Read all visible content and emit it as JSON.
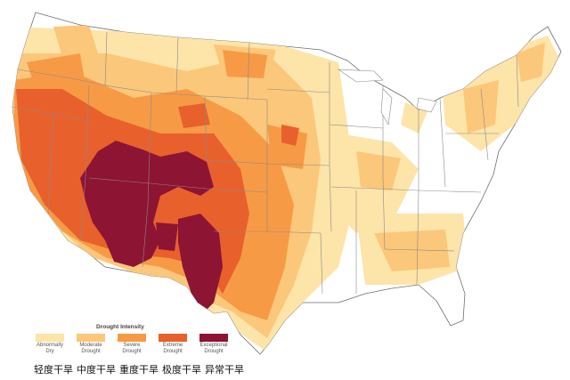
{
  "legend": {
    "title": "Drought Intensity",
    "levels": [
      {
        "en": "Abnormally\nDry",
        "cn": "轻度干旱",
        "color": "#fde4a8"
      },
      {
        "en": "Moderate\nDrought",
        "cn": "中度干旱",
        "color": "#fbc77a"
      },
      {
        "en": "Severe\nDrought",
        "cn": "重度干旱",
        "color": "#f79a45"
      },
      {
        "en": "Extreme\nDrought",
        "cn": "极度干旱",
        "color": "#e8602c"
      },
      {
        "en": "Exceptional\nDrought",
        "cn": "异常干旱",
        "color": "#8e1433"
      }
    ]
  },
  "map_colors": {
    "land": "#ffffff",
    "border": "#8a8a8a"
  }
}
